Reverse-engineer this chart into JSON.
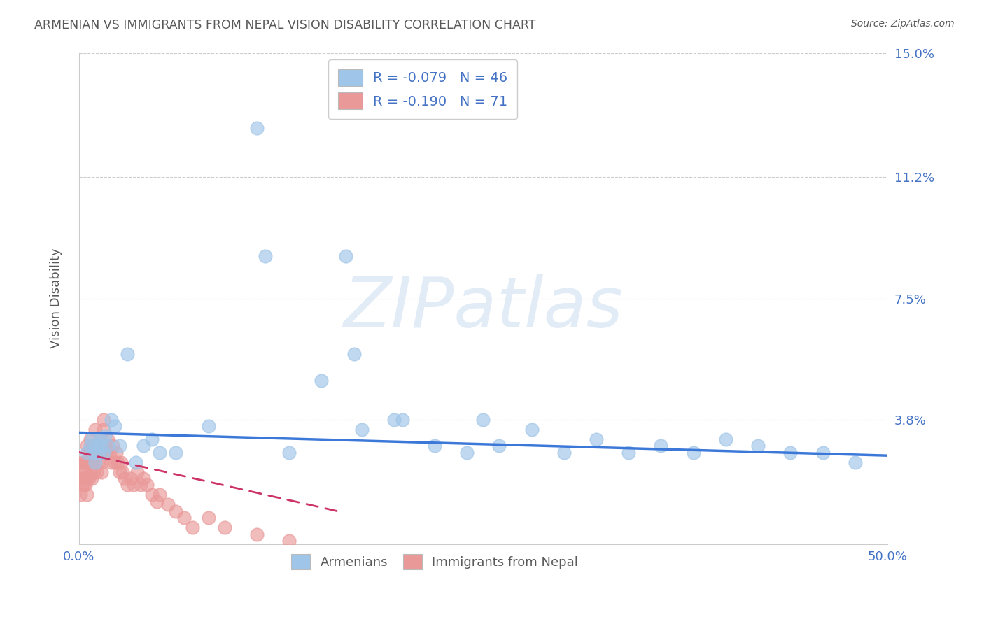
{
  "title": "ARMENIAN VS IMMIGRANTS FROM NEPAL VISION DISABILITY CORRELATION CHART",
  "source": "Source: ZipAtlas.com",
  "ylabel": "Vision Disability",
  "xlim": [
    0.0,
    0.5
  ],
  "ylim": [
    0.0,
    0.15
  ],
  "xticks": [
    0.0,
    0.1,
    0.2,
    0.3,
    0.4,
    0.5
  ],
  "yticks": [
    0.0,
    0.038,
    0.075,
    0.112,
    0.15
  ],
  "ytick_labels": [
    "",
    "3.8%",
    "7.5%",
    "11.2%",
    "15.0%"
  ],
  "xtick_labels": [
    "0.0%",
    "",
    "",
    "",
    "",
    "50.0%"
  ],
  "blue_R": -0.079,
  "blue_N": 46,
  "pink_R": -0.19,
  "pink_N": 71,
  "blue_color": "#9fc5e8",
  "pink_color": "#ea9999",
  "blue_line_color": "#3c78d8",
  "pink_line_color": "#cc3366",
  "background_color": "#ffffff",
  "grid_color": "#cccccc",
  "title_color": "#595959",
  "axis_label_color": "#4472c4",
  "watermark_text": "ZIPatlas",
  "legend_label_blue": "Armenians",
  "legend_label_pink": "Immigrants from Nepal",
  "blue_scatter_x": [
    0.005,
    0.007,
    0.008,
    0.009,
    0.01,
    0.011,
    0.012,
    0.013,
    0.014,
    0.015,
    0.016,
    0.018,
    0.02,
    0.022,
    0.025,
    0.03,
    0.035,
    0.04,
    0.05,
    0.11,
    0.115,
    0.165,
    0.17,
    0.22,
    0.24,
    0.26,
    0.3,
    0.32,
    0.34,
    0.36,
    0.38,
    0.4,
    0.42,
    0.44,
    0.25,
    0.28,
    0.195,
    0.13,
    0.08,
    0.06,
    0.045,
    0.15,
    0.175,
    0.2,
    0.46,
    0.48
  ],
  "blue_scatter_y": [
    0.028,
    0.03,
    0.032,
    0.028,
    0.025,
    0.03,
    0.028,
    0.032,
    0.03,
    0.028,
    0.033,
    0.03,
    0.038,
    0.036,
    0.03,
    0.058,
    0.025,
    0.03,
    0.028,
    0.127,
    0.088,
    0.088,
    0.058,
    0.03,
    0.028,
    0.03,
    0.028,
    0.032,
    0.028,
    0.03,
    0.028,
    0.032,
    0.03,
    0.028,
    0.038,
    0.035,
    0.038,
    0.028,
    0.036,
    0.028,
    0.032,
    0.05,
    0.035,
    0.038,
    0.028,
    0.025
  ],
  "pink_scatter_x": [
    0.001,
    0.001,
    0.002,
    0.002,
    0.002,
    0.003,
    0.003,
    0.003,
    0.003,
    0.004,
    0.004,
    0.004,
    0.005,
    0.005,
    0.005,
    0.005,
    0.006,
    0.006,
    0.006,
    0.007,
    0.007,
    0.007,
    0.008,
    0.008,
    0.008,
    0.009,
    0.009,
    0.01,
    0.01,
    0.01,
    0.011,
    0.011,
    0.012,
    0.012,
    0.013,
    0.013,
    0.014,
    0.014,
    0.015,
    0.015,
    0.016,
    0.017,
    0.018,
    0.019,
    0.02,
    0.021,
    0.022,
    0.023,
    0.024,
    0.025,
    0.026,
    0.027,
    0.028,
    0.03,
    0.032,
    0.034,
    0.036,
    0.038,
    0.04,
    0.042,
    0.045,
    0.048,
    0.05,
    0.055,
    0.06,
    0.065,
    0.07,
    0.08,
    0.09,
    0.11,
    0.13
  ],
  "pink_scatter_y": [
    0.02,
    0.015,
    0.018,
    0.022,
    0.025,
    0.02,
    0.025,
    0.018,
    0.022,
    0.02,
    0.025,
    0.018,
    0.03,
    0.025,
    0.02,
    0.015,
    0.028,
    0.025,
    0.02,
    0.032,
    0.028,
    0.022,
    0.03,
    0.025,
    0.02,
    0.028,
    0.022,
    0.035,
    0.03,
    0.025,
    0.028,
    0.022,
    0.03,
    0.025,
    0.032,
    0.028,
    0.025,
    0.022,
    0.038,
    0.035,
    0.03,
    0.028,
    0.032,
    0.028,
    0.025,
    0.03,
    0.025,
    0.028,
    0.025,
    0.022,
    0.025,
    0.022,
    0.02,
    0.018,
    0.02,
    0.018,
    0.022,
    0.018,
    0.02,
    0.018,
    0.015,
    0.013,
    0.015,
    0.012,
    0.01,
    0.008,
    0.005,
    0.008,
    0.005,
    0.003,
    0.001
  ],
  "blue_trendline_x": [
    0.0,
    0.5
  ],
  "blue_trendline_y": [
    0.034,
    0.027
  ],
  "pink_trendline_x": [
    0.0,
    0.16
  ],
  "pink_trendline_y": [
    0.028,
    0.01
  ]
}
